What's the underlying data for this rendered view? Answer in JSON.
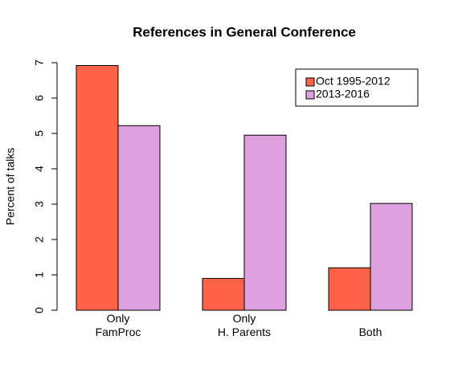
{
  "chart_data": {
    "type": "bar",
    "title": "References in General Conference",
    "y_label": "Percent of talks",
    "categories": [
      "Only\nFamProc",
      "Only\nH. Parents",
      "Both"
    ],
    "series": [
      {
        "name": "Oct 1995-2012",
        "color": "#ff6347",
        "values": [
          6.92,
          0.9,
          1.2
        ]
      },
      {
        "name": "2013-2016",
        "color": "#dda0dd",
        "values": [
          5.22,
          4.95,
          3.02
        ]
      }
    ],
    "ylim": [
      0,
      7
    ],
    "yticks": [
      0,
      1,
      2,
      3,
      4,
      5,
      6,
      7
    ],
    "legend": "topright"
  }
}
